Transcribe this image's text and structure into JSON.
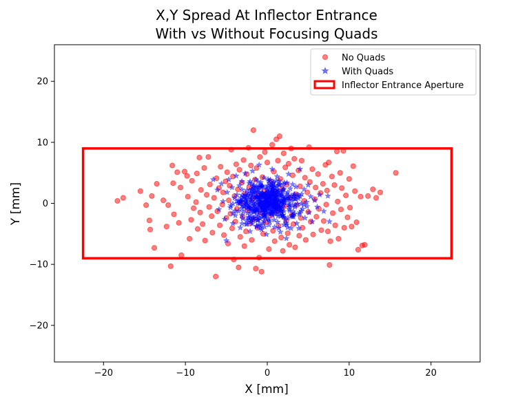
{
  "chart_data": {
    "type": "scatter",
    "title_lines": [
      "X,Y Spread At Inflector Entrance",
      "With vs Without Focusing Quads"
    ],
    "xlabel": "X [mm]",
    "ylabel": "Y [mm]",
    "xlim": [
      -26,
      26
    ],
    "ylim": [
      -26,
      26
    ],
    "xticks": [
      -20,
      -10,
      0,
      10,
      20
    ],
    "yticks": [
      -20,
      -10,
      0,
      10,
      20
    ],
    "grid": false,
    "legend_position": "upper-right",
    "legend": [
      "No Quads",
      "With Quads",
      "Inflector Entrance Aperture"
    ],
    "aperture": {
      "name": "Inflector Entrance Aperture",
      "x": [
        -22.5,
        22.5
      ],
      "y": [
        -9,
        9
      ],
      "color": "#ff0000"
    },
    "series": [
      {
        "name": "No Quads",
        "marker": "circle",
        "color": "#ff0000",
        "points": [
          [
            -18.3,
            0.4
          ],
          [
            -17.6,
            0.9
          ],
          [
            -15.5,
            2.0
          ],
          [
            -14.8,
            -0.3
          ],
          [
            -14.1,
            1.2
          ],
          [
            -14.4,
            -2.8
          ],
          [
            -14.3,
            -4.3
          ],
          [
            -13.8,
            -7.3
          ],
          [
            -13.5,
            3.2
          ],
          [
            -12.7,
            0.5
          ],
          [
            -12.3,
            -3.8
          ],
          [
            -12.1,
            -0.3
          ],
          [
            -11.8,
            -10.3
          ],
          [
            -11.6,
            6.2
          ],
          [
            -11.5,
            3.3
          ],
          [
            -11.4,
            -1.8
          ],
          [
            -11.0,
            5.1
          ],
          [
            -10.8,
            -3.2
          ],
          [
            -10.6,
            2.6
          ],
          [
            -10.5,
            -8.5
          ],
          [
            -10.1,
            5.2
          ],
          [
            -9.8,
            4.5
          ],
          [
            -9.7,
            1.1
          ],
          [
            -9.5,
            -5.8
          ],
          [
            -9.3,
            -2.7
          ],
          [
            -9.2,
            3.7
          ],
          [
            -9.0,
            -0.8
          ],
          [
            -8.7,
            0.2
          ],
          [
            -8.6,
            4.9
          ],
          [
            -8.5,
            -4.2
          ],
          [
            -8.3,
            7.5
          ],
          [
            -8.2,
            -1.5
          ],
          [
            -8.1,
            2.2
          ],
          [
            -7.9,
            -3.4
          ],
          [
            -7.7,
            5.8
          ],
          [
            -7.6,
            -6.1
          ],
          [
            -7.4,
            1.4
          ],
          [
            -7.2,
            7.6
          ],
          [
            -7.1,
            -0.6
          ],
          [
            -7.0,
            3.1
          ],
          [
            -6.8,
            -2.1
          ],
          [
            -6.7,
            -4.8
          ],
          [
            -6.5,
            0.9
          ],
          [
            -6.3,
            -12.0
          ],
          [
            -6.2,
            4.1
          ],
          [
            -6.1,
            -1.3
          ],
          [
            -5.9,
            2.5
          ],
          [
            -5.8,
            -3.6
          ],
          [
            -5.7,
            6.0
          ],
          [
            -5.5,
            -0.2
          ],
          [
            -5.4,
            1.8
          ],
          [
            -5.3,
            -5.2
          ],
          [
            -5.1,
            3.6
          ],
          [
            -5.0,
            -2.4
          ],
          [
            -4.9,
            5.1
          ],
          [
            -4.8,
            -6.6
          ],
          [
            -4.7,
            0.5
          ],
          [
            -4.6,
            2.9
          ],
          [
            -4.5,
            -1.7
          ],
          [
            -4.4,
            8.8
          ],
          [
            -4.3,
            -4.1
          ],
          [
            -4.2,
            4.4
          ],
          [
            -4.1,
            -9.2
          ],
          [
            -4.0,
            1.2
          ],
          [
            -3.9,
            -3.0
          ],
          [
            -3.8,
            6.4
          ],
          [
            -3.7,
            -0.9
          ],
          [
            -3.6,
            2.3
          ],
          [
            -3.5,
            -10.5
          ],
          [
            -3.4,
            5.5
          ],
          [
            -3.3,
            -5.5
          ],
          [
            -3.2,
            0.1
          ],
          [
            -3.1,
            3.4
          ],
          [
            -3.0,
            -2.2
          ],
          [
            -2.9,
            7.1
          ],
          [
            -2.8,
            -7.0
          ],
          [
            -2.7,
            1.6
          ],
          [
            -2.6,
            -4.6
          ],
          [
            -2.5,
            4.8
          ],
          [
            -2.4,
            -1.1
          ],
          [
            -2.3,
            9.1
          ],
          [
            -2.2,
            2.7
          ],
          [
            -2.1,
            -3.3
          ],
          [
            -2.0,
            6.2
          ],
          [
            -1.9,
            -6.0
          ],
          [
            -1.8,
            0.8
          ],
          [
            -1.7,
            12.0
          ],
          [
            -1.6,
            -2.6
          ],
          [
            -1.5,
            3.9
          ],
          [
            -1.4,
            -10.7
          ],
          [
            -1.3,
            5.8
          ],
          [
            -1.2,
            -4.0
          ],
          [
            -1.1,
            1.3
          ],
          [
            -1.0,
            -8.9
          ],
          [
            -0.9,
            7.6
          ],
          [
            -0.8,
            -1.6
          ],
          [
            -0.7,
            -11.2
          ],
          [
            -0.6,
            4.3
          ],
          [
            -0.5,
            -5.0
          ],
          [
            -0.4,
            2.0
          ],
          [
            -0.3,
            8.4
          ],
          [
            -0.2,
            -3.1
          ],
          [
            0.0,
            6.7
          ],
          [
            0.2,
            -7.5
          ],
          [
            0.3,
            0.6
          ],
          [
            0.4,
            3.6
          ],
          [
            0.5,
            -2.0
          ],
          [
            0.6,
            9.6
          ],
          [
            0.7,
            -4.5
          ],
          [
            0.8,
            5.2
          ],
          [
            0.9,
            -6.2
          ],
          [
            1.0,
            1.9
          ],
          [
            1.1,
            10.5
          ],
          [
            1.2,
            -1.2
          ],
          [
            1.3,
            7.0
          ],
          [
            1.4,
            -3.7
          ],
          [
            1.5,
            11.0
          ],
          [
            1.6,
            4.0
          ],
          [
            1.7,
            -5.6
          ],
          [
            1.8,
            2.4
          ],
          [
            1.9,
            -7.8
          ],
          [
            2.0,
            8.2
          ],
          [
            2.1,
            -0.5
          ],
          [
            2.2,
            5.9
          ],
          [
            2.3,
            -2.8
          ],
          [
            2.4,
            3.1
          ],
          [
            2.5,
            -4.9
          ],
          [
            2.6,
            6.5
          ],
          [
            2.7,
            -6.8
          ],
          [
            2.8,
            0.9
          ],
          [
            2.9,
            9.0
          ],
          [
            3.0,
            -1.9
          ],
          [
            3.1,
            4.6
          ],
          [
            3.2,
            -3.4
          ],
          [
            3.3,
            7.3
          ],
          [
            3.4,
            -7.2
          ],
          [
            3.5,
            1.5
          ],
          [
            3.6,
            -0.3
          ],
          [
            3.8,
            5.4
          ],
          [
            3.9,
            -5.3
          ],
          [
            4.0,
            2.8
          ],
          [
            4.1,
            -2.4
          ],
          [
            4.2,
            7.0
          ],
          [
            4.3,
            -4.0
          ],
          [
            4.5,
            0.4
          ],
          [
            4.6,
            4.2
          ],
          [
            4.7,
            -6.0
          ],
          [
            4.9,
            1.8
          ],
          [
            5.0,
            -1.4
          ],
          [
            5.1,
            9.2
          ],
          [
            5.2,
            3.5
          ],
          [
            5.3,
            -3.0
          ],
          [
            5.5,
            5.6
          ],
          [
            5.6,
            -5.1
          ],
          [
            5.8,
            0.7
          ],
          [
            5.9,
            2.6
          ],
          [
            6.0,
            -2.2
          ],
          [
            6.2,
            4.8
          ],
          [
            6.3,
            -0.9
          ],
          [
            6.5,
            1.7
          ],
          [
            6.6,
            -4.4
          ],
          [
            6.8,
            3.2
          ],
          [
            6.9,
            -2.9
          ],
          [
            7.1,
            6.3
          ],
          [
            7.2,
            -0.2
          ],
          [
            7.3,
            2.1
          ],
          [
            7.4,
            -4.6
          ],
          [
            7.5,
            6.7
          ],
          [
            7.6,
            -10.1
          ],
          [
            7.7,
            -6.2
          ],
          [
            7.9,
            4.4
          ],
          [
            8.0,
            -1.6
          ],
          [
            8.2,
            3.0
          ],
          [
            8.3,
            -3.6
          ],
          [
            8.5,
            8.5
          ],
          [
            8.6,
            0.3
          ],
          [
            8.7,
            -5.8
          ],
          [
            8.9,
            5.0
          ],
          [
            9.0,
            -1.0
          ],
          [
            9.1,
            2.5
          ],
          [
            9.3,
            8.6
          ],
          [
            9.4,
            -4.0
          ],
          [
            9.6,
            1.3
          ],
          [
            9.8,
            -2.3
          ],
          [
            10.0,
            4.0
          ],
          [
            10.1,
            -0.7
          ],
          [
            10.3,
            -3.8
          ],
          [
            10.5,
            6.1
          ],
          [
            10.7,
            2.0
          ],
          [
            10.9,
            -3.1
          ],
          [
            11.1,
            -7.6
          ],
          [
            11.4,
            1.1
          ],
          [
            11.6,
            -6.9
          ],
          [
            11.9,
            -6.8
          ],
          [
            12.3,
            1.2
          ],
          [
            12.9,
            2.3
          ],
          [
            13.3,
            0.9
          ],
          [
            13.8,
            1.8
          ],
          [
            15.7,
            5.0
          ]
        ]
      },
      {
        "name": "With Quads",
        "marker": "star",
        "color": "#0000ff",
        "points": [
          [
            -6.6,
            3.9
          ],
          [
            -6.1,
            2.2
          ],
          [
            -5.9,
            -1.0
          ],
          [
            -5.6,
            3.2
          ],
          [
            -5.4,
            0.3
          ],
          [
            -5.2,
            -2.6
          ],
          [
            -5.0,
            -6.1
          ],
          [
            -4.9,
            1.8
          ],
          [
            -4.7,
            3.9
          ],
          [
            -4.5,
            -0.7
          ],
          [
            -4.3,
            2.6
          ],
          [
            -4.2,
            -3.3
          ],
          [
            -4.0,
            0.9
          ],
          [
            -3.9,
            -2.0
          ],
          [
            -3.8,
            4.5
          ],
          [
            -3.7,
            1.4
          ],
          [
            -3.5,
            -1.3
          ],
          [
            -3.4,
            2.9
          ],
          [
            -3.3,
            -4.0
          ],
          [
            -3.2,
            0.2
          ],
          [
            -3.1,
            3.6
          ],
          [
            -3.0,
            -2.5
          ],
          [
            -2.9,
            1.1
          ],
          [
            -2.8,
            -0.5
          ],
          [
            -2.7,
            4.9
          ],
          [
            -2.6,
            -3.4
          ],
          [
            -2.5,
            2.1
          ],
          [
            -2.4,
            -1.6
          ],
          [
            -2.3,
            0.6
          ],
          [
            -2.2,
            3.3
          ],
          [
            -2.1,
            -4.6
          ],
          [
            -2.0,
            1.7
          ],
          [
            -1.9,
            -0.9
          ],
          [
            -1.8,
            5.3
          ],
          [
            -1.7,
            -2.8
          ],
          [
            -1.6,
            2.4
          ],
          [
            -1.5,
            -0.2
          ],
          [
            -1.4,
            3.9
          ],
          [
            -1.3,
            -3.7
          ],
          [
            -1.2,
            1.0
          ],
          [
            -1.1,
            -1.9
          ],
          [
            -1.0,
            6.3
          ],
          [
            -0.9,
            0.3
          ],
          [
            -0.8,
            2.8
          ],
          [
            -0.7,
            -4.3
          ],
          [
            -0.6,
            1.5
          ],
          [
            -0.5,
            -1.1
          ],
          [
            -0.4,
            4.2
          ],
          [
            -0.3,
            -2.3
          ],
          [
            -0.2,
            0.8
          ],
          [
            -0.1,
            -5.1
          ],
          [
            0.0,
            2.2
          ],
          [
            0.1,
            -0.4
          ],
          [
            0.2,
            3.7
          ],
          [
            0.3,
            -3.0
          ],
          [
            0.4,
            1.3
          ],
          [
            0.5,
            -1.7
          ],
          [
            0.6,
            5.6
          ],
          [
            0.7,
            0.0
          ],
          [
            0.8,
            2.6
          ],
          [
            0.9,
            -3.9
          ],
          [
            1.0,
            1.0
          ],
          [
            1.1,
            -0.8
          ],
          [
            1.2,
            4.4
          ],
          [
            1.3,
            -2.1
          ],
          [
            1.4,
            0.5
          ],
          [
            1.5,
            3.0
          ],
          [
            1.6,
            -4.7
          ],
          [
            1.7,
            1.6
          ],
          [
            1.8,
            -1.4
          ],
          [
            1.9,
            2.1
          ],
          [
            2.0,
            -0.3
          ],
          [
            2.1,
            3.4
          ],
          [
            2.2,
            -2.7
          ],
          [
            2.3,
            0.9
          ],
          [
            2.4,
            -3.5
          ],
          [
            2.5,
            1.8
          ],
          [
            2.6,
            4.8
          ],
          [
            2.7,
            -1.0
          ],
          [
            2.8,
            2.4
          ],
          [
            2.9,
            -4.1
          ],
          [
            3.0,
            0.4
          ],
          [
            3.1,
            3.1
          ],
          [
            3.2,
            -2.2
          ],
          [
            3.3,
            1.2
          ],
          [
            3.4,
            -0.6
          ],
          [
            3.5,
            2.7
          ],
          [
            3.6,
            -3.3
          ],
          [
            3.8,
            0.8
          ],
          [
            3.9,
            -1.8
          ],
          [
            4.0,
            5.6
          ],
          [
            4.2,
            1.5
          ],
          [
            4.3,
            -0.9
          ],
          [
            4.5,
            2.3
          ],
          [
            4.6,
            -2.4
          ],
          [
            4.8,
            0.2
          ],
          [
            5.0,
            3.0
          ],
          [
            5.1,
            -1.5
          ],
          [
            5.3,
            1.1
          ],
          [
            5.5,
            -3.0
          ],
          [
            5.8,
            0.5
          ],
          [
            6.1,
            -0.6
          ],
          [
            6.4,
            1.4
          ],
          [
            6.9,
            -1.3
          ],
          [
            7.4,
            1.2
          ],
          [
            7.6,
            -3.0
          ]
        ]
      }
    ]
  },
  "marker_alpha": 0.5,
  "dense_core": {
    "count": 420,
    "seed": 7,
    "spread_x": 1.7,
    "spread_y": 1.6
  }
}
